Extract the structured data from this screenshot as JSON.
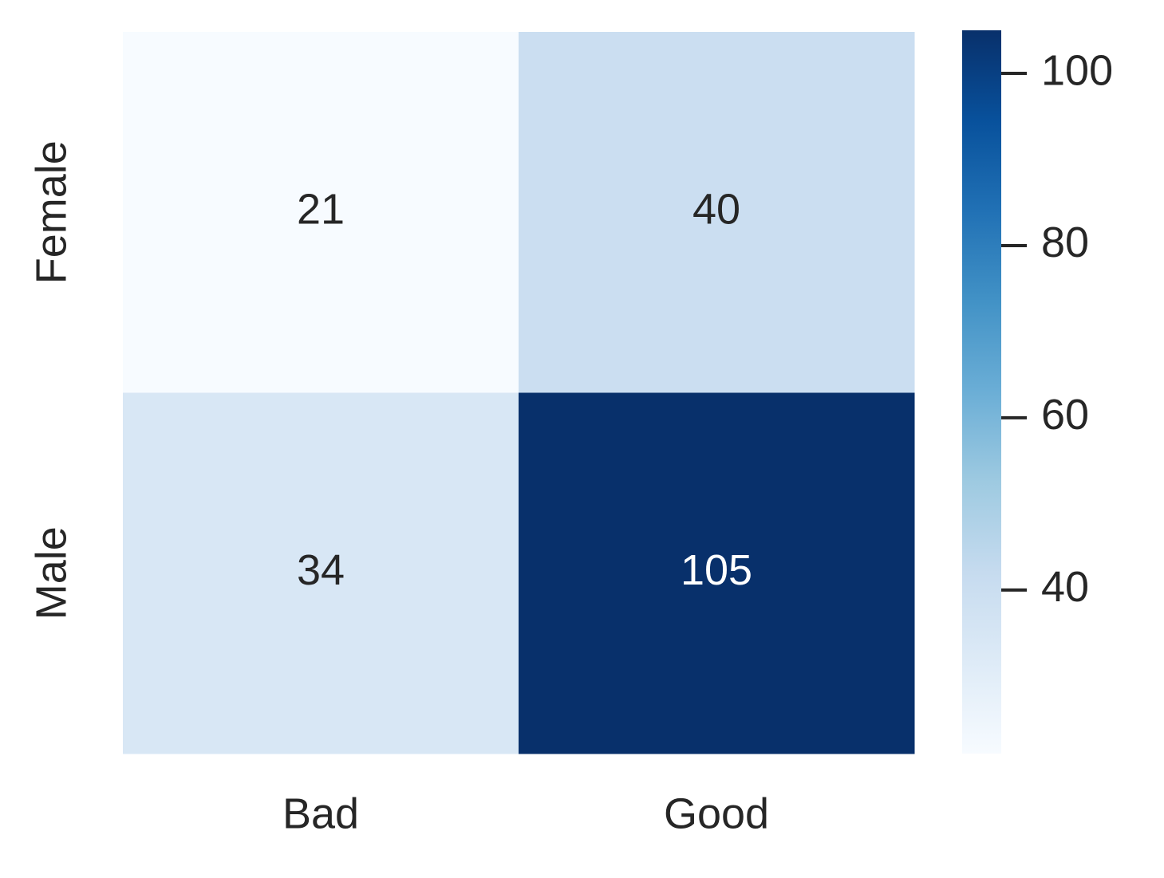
{
  "chart_data": {
    "type": "heatmap",
    "x_categories": [
      "Bad",
      "Good"
    ],
    "y_categories": [
      "Female",
      "Male"
    ],
    "values": [
      [
        21,
        40
      ],
      [
        34,
        105
      ]
    ],
    "colormap": "Blues",
    "clim": [
      21,
      105
    ],
    "colorbar_ticks": [
      40,
      60,
      80,
      100
    ]
  }
}
